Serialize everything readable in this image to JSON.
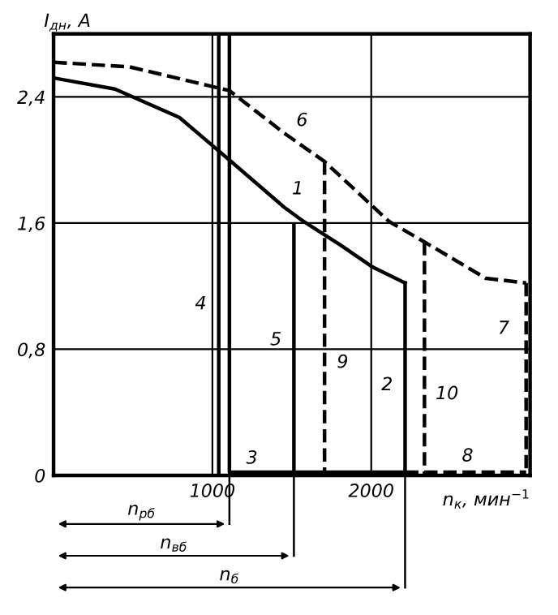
{
  "chart_data": {
    "type": "line",
    "ylabel": "I$_{дн}$, А",
    "xlabel": "n$_{к}$, мин$^{−1}$",
    "xlim": [
      0,
      3000
    ],
    "ylim": [
      0,
      2.8
    ],
    "xticks": [
      1000,
      2000
    ],
    "yticks": [
      {
        "value": 0,
        "label": "0"
      },
      {
        "value": 0.8,
        "label": "0,8"
      },
      {
        "value": 1.6,
        "label": "1,6"
      },
      {
        "value": 2.4,
        "label": "2,4"
      }
    ],
    "grid": true,
    "legend": false,
    "series": [
      {
        "name": "1",
        "color": "#000000",
        "line_style": "solid",
        "x": [
          0,
          386,
          792,
          1107,
          1452,
          1574,
          1807,
          2010,
          2213
        ],
        "values": [
          2.52,
          2.45,
          2.27,
          2.0,
          1.7,
          1.61,
          1.46,
          1.32,
          1.22
        ]
      },
      {
        "name": "2",
        "color": "#000000",
        "line_style": "solid",
        "x": [
          2213,
          2213
        ],
        "values": [
          1.22,
          0
        ]
      },
      {
        "name": "3",
        "color": "#000000",
        "line_style": "solid",
        "x": [
          1107,
          1107,
          2213
        ],
        "values": [
          2.8,
          0.02,
          0.02
        ]
      },
      {
        "name": "4",
        "color": "#000000",
        "line_style": "solid",
        "x": [
          1040,
          1040
        ],
        "values": [
          2.8,
          0
        ]
      },
      {
        "name": "5",
        "color": "#000000",
        "line_style": "solid",
        "x": [
          1513,
          1513
        ],
        "values": [
          0,
          1.59
        ]
      },
      {
        "name": "6",
        "color": "#000000",
        "line_style": "dashed",
        "x": [
          0,
          480,
          1107,
          1452,
          1706,
          2112,
          2335,
          2721,
          2975
        ],
        "values": [
          2.62,
          2.59,
          2.44,
          2.17,
          1.99,
          1.61,
          1.48,
          1.25,
          1.22
        ]
      },
      {
        "name": "7",
        "color": "#000000",
        "line_style": "dashed",
        "x": [
          2975,
          2975
        ],
        "values": [
          1.22,
          0
        ]
      },
      {
        "name": "8",
        "color": "#000000",
        "line_style": "dashed",
        "x": [
          2213,
          2975
        ],
        "values": [
          0.02,
          0.02
        ]
      },
      {
        "name": "9",
        "color": "#000000",
        "line_style": "dashed",
        "x": [
          1706,
          1706
        ],
        "values": [
          1.99,
          0
        ]
      },
      {
        "name": "10",
        "color": "#000000",
        "line_style": "dashed",
        "x": [
          2335,
          2335
        ],
        "values": [
          1.48,
          0
        ]
      }
    ],
    "annotations": [
      "n$_{рб}$",
      "n$_{вб}$",
      "n$_{б}$"
    ]
  }
}
